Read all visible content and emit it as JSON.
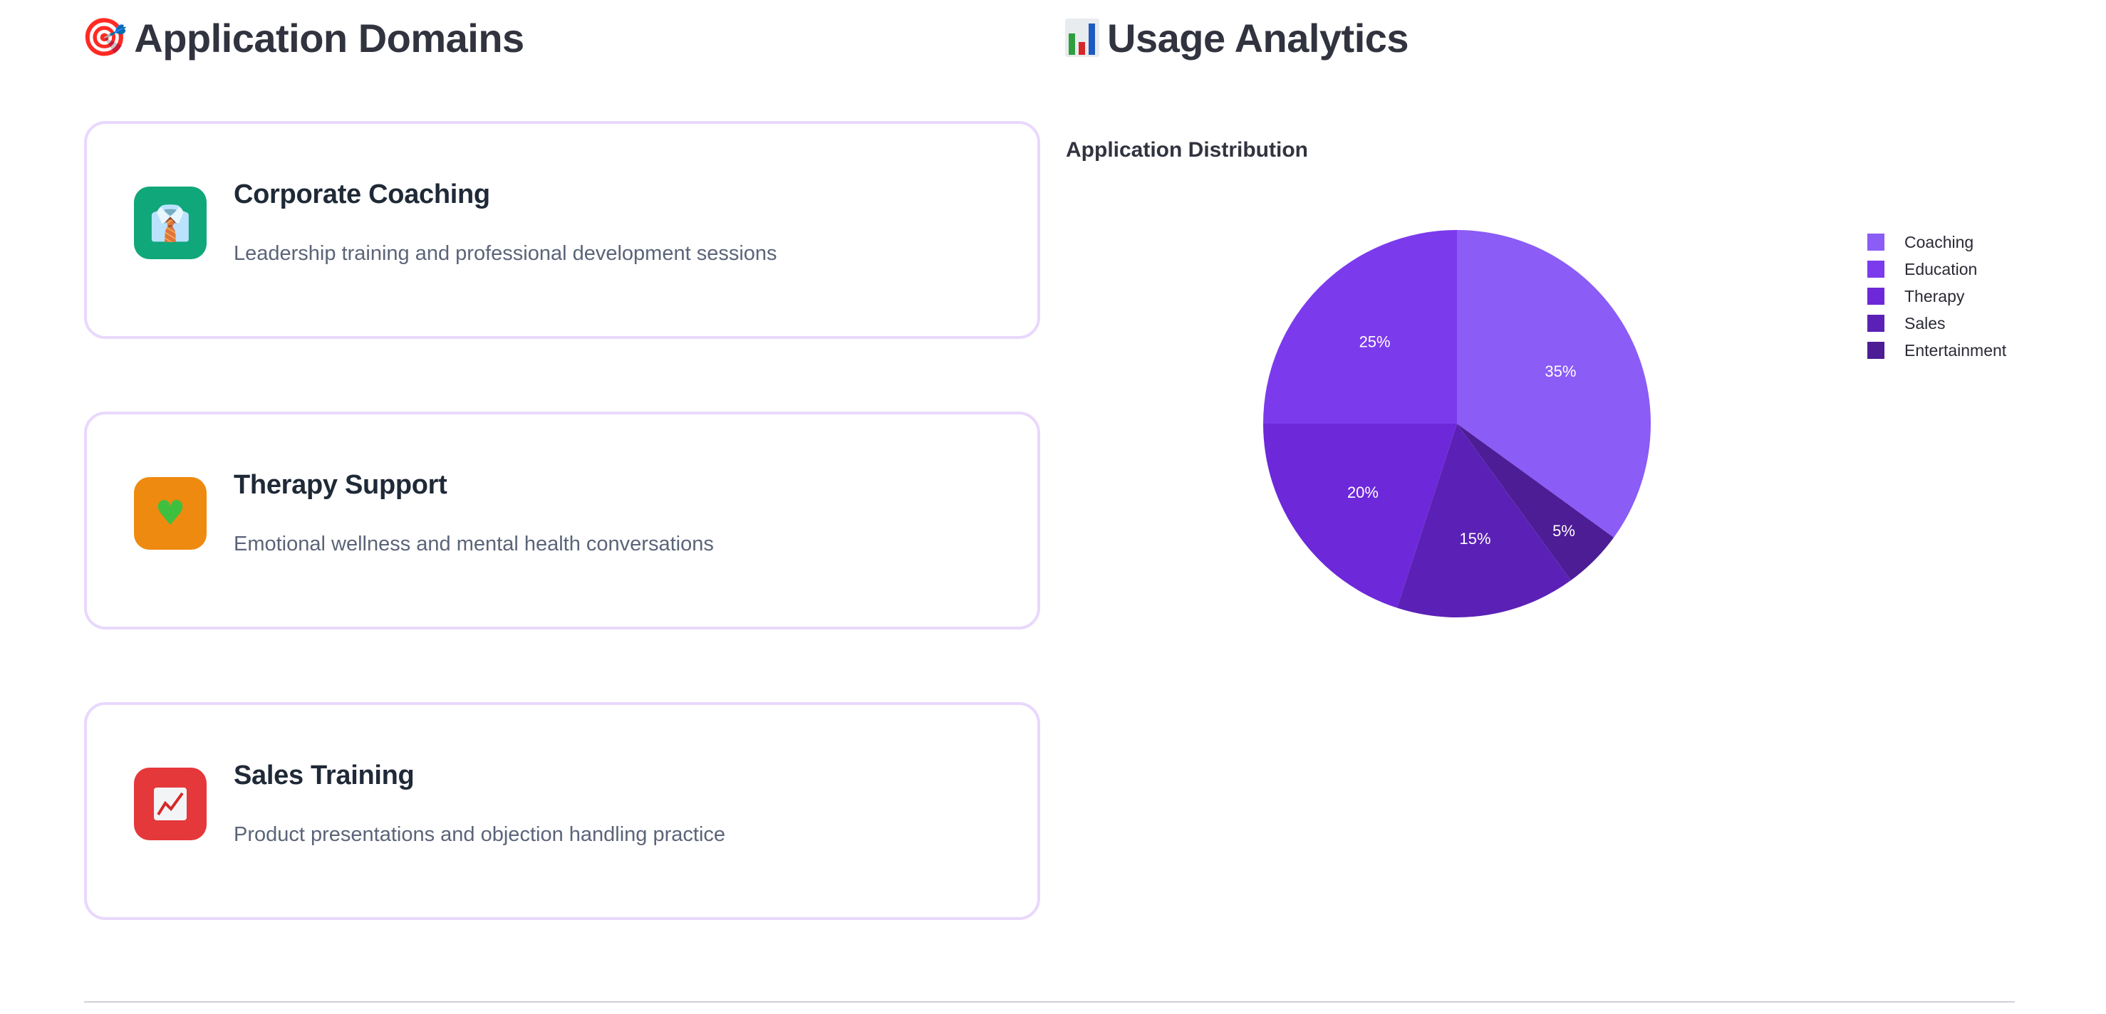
{
  "left_section": {
    "title": "Application Domains",
    "title_icon": "target-icon",
    "cards": [
      {
        "title": "Corporate Coaching",
        "description": "Leadership training and professional development sessions",
        "icon": "business-person-icon",
        "icon_bg": "#10a77a"
      },
      {
        "title": "Therapy Support",
        "description": "Emotional wellness and mental health conversations",
        "icon": "green-heart-icon",
        "icon_bg": "#ee8a10"
      },
      {
        "title": "Sales Training",
        "description": "Product presentations and objection handling practice",
        "icon": "chart-increasing-icon",
        "icon_bg": "#e5383b"
      }
    ]
  },
  "right_section": {
    "title": "Usage Analytics",
    "title_icon": "bar-chart-icon"
  },
  "chart_data": {
    "type": "pie",
    "title": "Application Distribution",
    "categories": [
      "Coaching",
      "Education",
      "Therapy",
      "Sales",
      "Entertainment"
    ],
    "values": [
      35,
      25,
      20,
      15,
      5
    ],
    "labels": [
      "35%",
      "25%",
      "20%",
      "15%",
      "5%"
    ],
    "colors": [
      "#8b5cf6",
      "#7c3aed",
      "#6d28d9",
      "#5b21b6",
      "#4c1d95"
    ],
    "legend_position": "right"
  }
}
